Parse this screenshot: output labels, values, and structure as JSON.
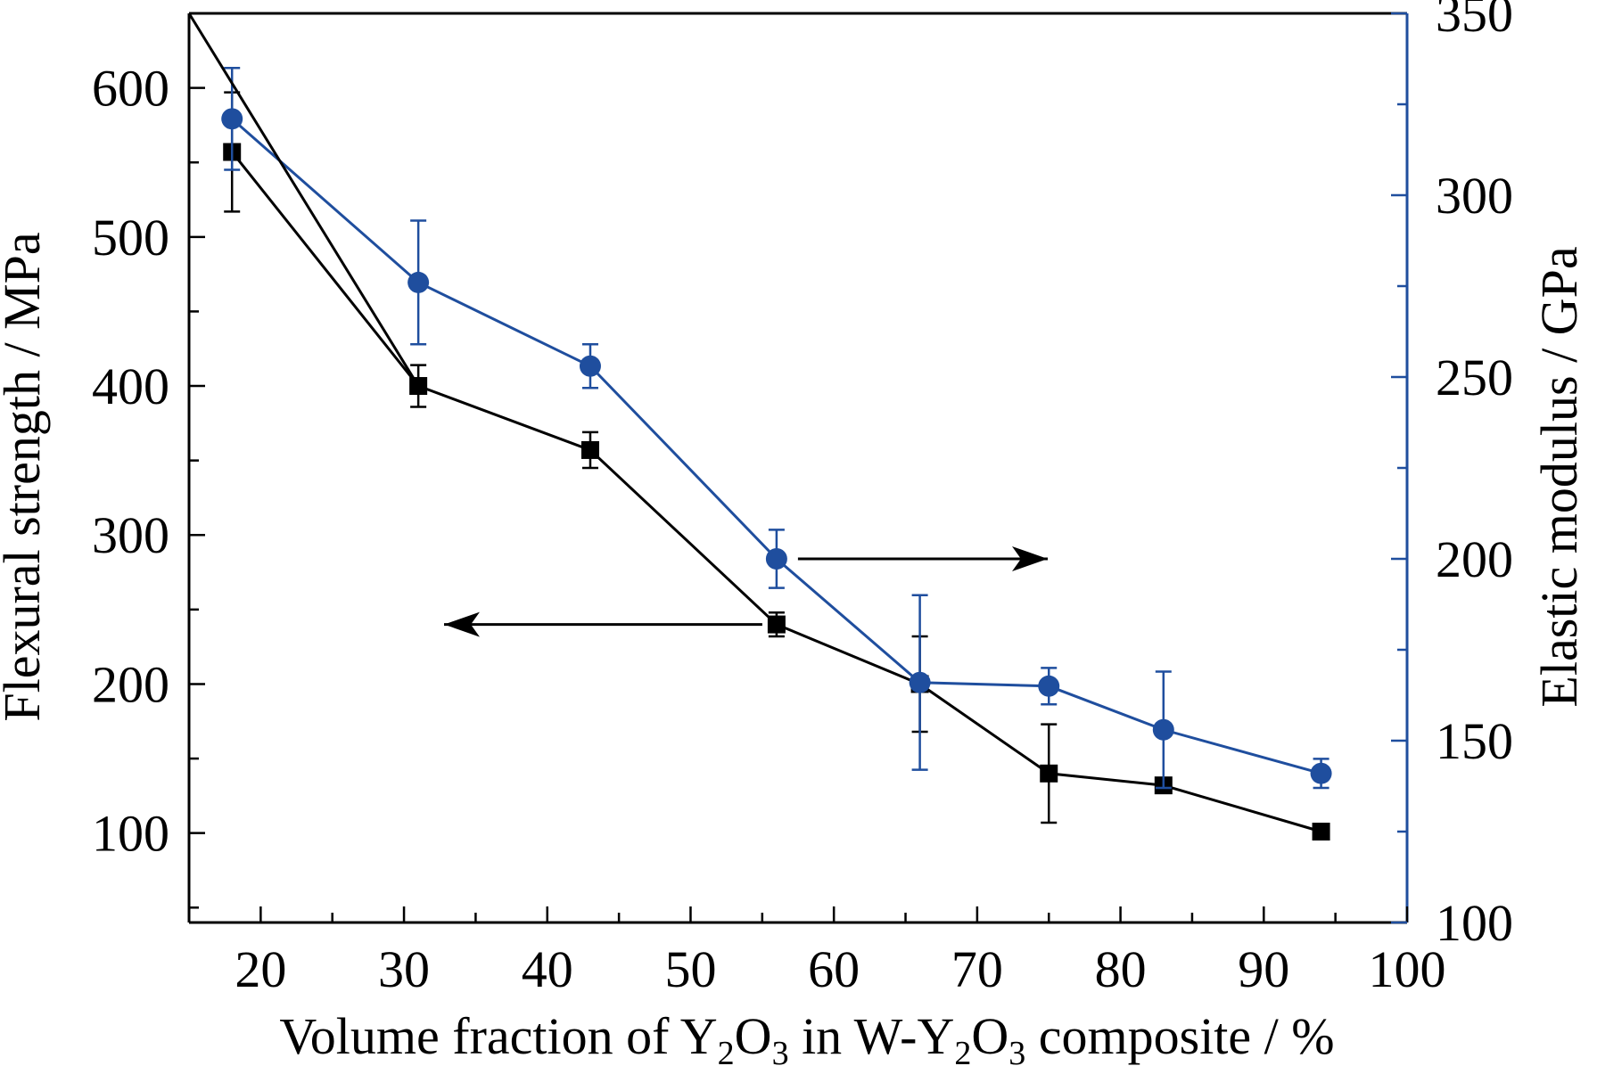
{
  "chart_data": {
    "type": "line",
    "xlabel": {
      "main": "Volume fraction of Y",
      "sub1": "2",
      "mid1": "O",
      "sub2": "3",
      "mid2": " in W-Y",
      "sub3": "2",
      "mid3": "O",
      "sub4": "3",
      "tail": " composite / %"
    },
    "ylabel_left": "Flexural strength / MPa",
    "ylabel_right": "Elastic modulus / GPa",
    "xlim": [
      15,
      100
    ],
    "ylim_left": [
      40,
      650
    ],
    "ylim_right": [
      100,
      350
    ],
    "x_ticks": [
      20,
      30,
      40,
      50,
      60,
      70,
      80,
      90,
      100
    ],
    "y_ticks_left": [
      100,
      200,
      300,
      400,
      500,
      600
    ],
    "y_ticks_right": [
      100,
      150,
      200,
      250,
      300,
      350
    ],
    "colors": {
      "left": "#000000",
      "right": "#1f4e9e"
    },
    "series": [
      {
        "axis": "left",
        "marker": "square",
        "x": [
          18,
          31,
          43,
          56,
          66,
          75,
          83,
          94
        ],
        "y": [
          557,
          400,
          357,
          240,
          200,
          140,
          132,
          101
        ],
        "err": [
          40,
          14,
          12,
          8,
          32,
          33,
          5,
          5
        ]
      },
      {
        "axis": "right",
        "marker": "circle",
        "x": [
          18,
          31,
          43,
          56,
          66,
          75,
          83,
          94
        ],
        "y": [
          321,
          276,
          253,
          200,
          166,
          165,
          153,
          141
        ],
        "err": [
          14,
          17,
          6,
          8,
          24,
          5,
          16,
          4
        ]
      }
    ]
  }
}
